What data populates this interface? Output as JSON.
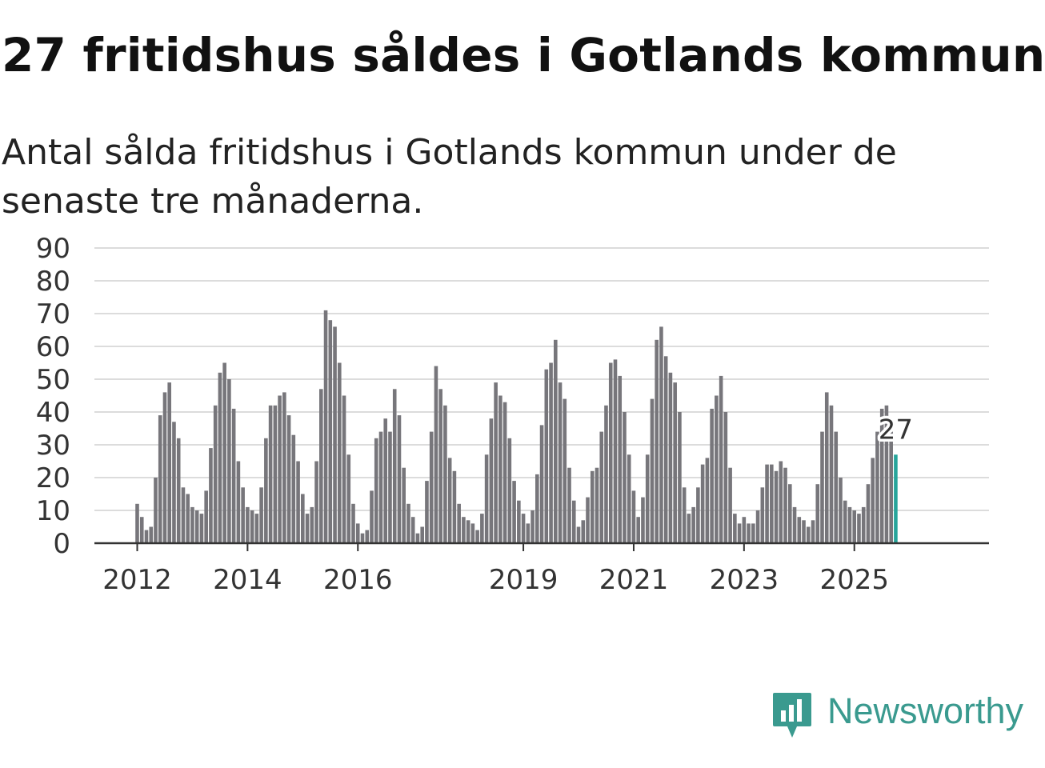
{
  "header": {
    "title": "27 fritidshus såldes i Gotlands kommun",
    "subtitle": "Antal sålda fritidshus i Gotlands kommun under de senaste tre månaderna."
  },
  "brand": {
    "name": "Newsworthy",
    "color": "#3a9a8f",
    "icon": "newsworthy-logo-icon"
  },
  "chart_data": {
    "type": "bar",
    "x_start": "2012-01",
    "interval": "month",
    "ylim": [
      0,
      90
    ],
    "yticks": [
      0,
      10,
      20,
      30,
      40,
      50,
      60,
      70,
      80,
      90
    ],
    "xticks": [
      "2012",
      "2014",
      "2016",
      "2019",
      "2021",
      "2023",
      "2025"
    ],
    "grid": true,
    "bar_color": "#77767b",
    "highlight_color": "#27a59b",
    "highlight_label": "27",
    "values": [
      12,
      8,
      4,
      5,
      20,
      39,
      46,
      49,
      37,
      32,
      17,
      15,
      11,
      10,
      9,
      16,
      29,
      42,
      52,
      55,
      50,
      41,
      25,
      17,
      11,
      10,
      9,
      17,
      32,
      42,
      42,
      45,
      46,
      39,
      33,
      25,
      15,
      9,
      11,
      25,
      47,
      71,
      68,
      66,
      55,
      45,
      27,
      12,
      6,
      3,
      4,
      16,
      32,
      34,
      38,
      34,
      47,
      39,
      23,
      12,
      8,
      3,
      5,
      19,
      34,
      54,
      47,
      42,
      26,
      22,
      12,
      8,
      7,
      6,
      4,
      9,
      27,
      38,
      49,
      45,
      43,
      32,
      19,
      13,
      9,
      6,
      10,
      21,
      36,
      53,
      55,
      62,
      49,
      44,
      23,
      13,
      5,
      7,
      14,
      22,
      23,
      34,
      42,
      55,
      56,
      51,
      40,
      27,
      16,
      8,
      14,
      27,
      44,
      62,
      66,
      57,
      52,
      49,
      40,
      17,
      9,
      11,
      17,
      24,
      26,
      41,
      45,
      51,
      40,
      23,
      9,
      6,
      8,
      6,
      6,
      10,
      17,
      24,
      24,
      22,
      25,
      23,
      18,
      11,
      8,
      7,
      5,
      7,
      18,
      34,
      46,
      42,
      34,
      20,
      13,
      11,
      10,
      9,
      11,
      18,
      26,
      34,
      41,
      42,
      34,
      27
    ]
  }
}
